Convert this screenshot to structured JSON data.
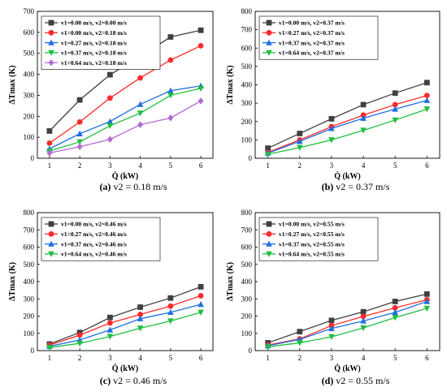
{
  "figure": {
    "panels": [
      {
        "id": "a",
        "caption_letter": "(a)",
        "caption_text": "v2 = 0.18 m/s",
        "chart_data": {
          "type": "line",
          "x": [
            1,
            2,
            3,
            4,
            5,
            6
          ],
          "xlabel": "Q̇ (kW)",
          "ylabel": "ΔTmax (K)",
          "ylim": [
            0,
            700
          ],
          "yticks": [
            0,
            100,
            200,
            300,
            400,
            500,
            600,
            700
          ],
          "legend_position": "top-left",
          "series": [
            {
              "name": "v1=0.00 m/s, v2=0.00 m/s",
              "color": "#404040",
              "marker": "square",
              "values": [
                130,
                278,
                398,
                485,
                578,
                610
              ]
            },
            {
              "name": "v1=0.00 m/s, v2=0.18 m/s",
              "color": "#ff2a2a",
              "marker": "circle",
              "values": [
                72,
                173,
                287,
                383,
                468,
                536
              ]
            },
            {
              "name": "v1=0.27 m/s, v2=0.18 m/s",
              "color": "#1f6fe0",
              "marker": "triangle-up",
              "values": [
                45,
                117,
                175,
                257,
                322,
                345
              ]
            },
            {
              "name": "v1=0.37 m/s, v2=0.18 m/s",
              "color": "#1fbf3f",
              "marker": "triangle-down",
              "values": [
                35,
                78,
                155,
                215,
                300,
                333
              ]
            },
            {
              "name": "v1=0.64 m/s, v2=0.18 m/s",
              "color": "#b36ad6",
              "marker": "diamond",
              "values": [
                25,
                55,
                90,
                160,
                192,
                273
              ]
            }
          ]
        }
      },
      {
        "id": "b",
        "caption_letter": "(b)",
        "caption_text": "v2 = 0.37 m/s",
        "chart_data": {
          "type": "line",
          "x": [
            1,
            2,
            3,
            4,
            5,
            6
          ],
          "xlabel": "Q̇ (kW)",
          "ylabel": "ΔTmax (K)",
          "ylim": [
            0,
            800
          ],
          "yticks": [
            0,
            100,
            200,
            300,
            400,
            500,
            600,
            700,
            800
          ],
          "legend_position": "top-left",
          "series": [
            {
              "name": "v1=0.00 m/s, v2=0.37 m/s",
              "color": "#404040",
              "marker": "square",
              "values": [
                55,
                135,
                215,
                292,
                355,
                412
              ]
            },
            {
              "name": "v1=0.27 m/s, v2=0.37 m/s",
              "color": "#ff2a2a",
              "marker": "circle",
              "values": [
                32,
                100,
                172,
                235,
                292,
                342
              ]
            },
            {
              "name": "v1=0.37 m/s, v2=0.37 m/s",
              "color": "#1f6fe0",
              "marker": "triangle-up",
              "values": [
                28,
                92,
                162,
                218,
                268,
                315
              ]
            },
            {
              "name": "v1=0.64 m/s, v2=0.37 m/s",
              "color": "#1fbf3f",
              "marker": "triangle-down",
              "values": [
                22,
                58,
                100,
                152,
                208,
                268
              ]
            }
          ]
        }
      },
      {
        "id": "c",
        "caption_letter": "(c)",
        "caption_text": "v2 = 0.46 m/s",
        "chart_data": {
          "type": "line",
          "x": [
            1,
            2,
            3,
            4,
            5,
            6
          ],
          "xlabel": "Q̇ (kW)",
          "ylabel": "ΔTmax (K)",
          "ylim": [
            0,
            800
          ],
          "yticks": [
            0,
            100,
            200,
            300,
            400,
            500,
            600,
            700,
            800
          ],
          "legend_position": "top-left",
          "series": [
            {
              "name": "v1=0.00 m/s, v2=0.46 m/s",
              "color": "#404040",
              "marker": "square",
              "values": [
                38,
                105,
                192,
                252,
                305,
                370
              ]
            },
            {
              "name": "v1=0.27 m/s, v2=0.46 m/s",
              "color": "#ff2a2a",
              "marker": "circle",
              "values": [
                32,
                90,
                160,
                210,
                258,
                318
              ]
            },
            {
              "name": "v1=0.37 m/s, v2=0.46 m/s",
              "color": "#1f6fe0",
              "marker": "triangle-up",
              "values": [
                25,
                62,
                120,
                185,
                222,
                268
              ]
            },
            {
              "name": "v1=0.64 m/s, v2=0.46 m/s",
              "color": "#1fbf3f",
              "marker": "triangle-down",
              "values": [
                18,
                42,
                82,
                130,
                172,
                222
              ]
            }
          ]
        }
      },
      {
        "id": "d",
        "caption_letter": "(d)",
        "caption_text": "v2 = 0.55 m/s",
        "chart_data": {
          "type": "line",
          "x": [
            1,
            2,
            3,
            4,
            5,
            6
          ],
          "xlabel": "Q̇ (kW)",
          "ylabel": "ΔTmax (K)",
          "ylim": [
            0,
            800
          ],
          "yticks": [
            0,
            100,
            200,
            300,
            400,
            500,
            600,
            700,
            800
          ],
          "legend_position": "top-left",
          "series": [
            {
              "name": "v1=0.00 m/s, v2=0.55 m/s",
              "color": "#404040",
              "marker": "square",
              "values": [
                45,
                110,
                175,
                225,
                285,
                328
              ]
            },
            {
              "name": "v1=0.27 m/s, v2=0.55 m/s",
              "color": "#ff2a2a",
              "marker": "circle",
              "values": [
                32,
                68,
                145,
                198,
                248,
                295
              ]
            },
            {
              "name": "v1=0.37 m/s, v2=0.55 m/s",
              "color": "#1f6fe0",
              "marker": "triangle-up",
              "values": [
                28,
                65,
                128,
                172,
                222,
                285
              ]
            },
            {
              "name": "v1=0.64 m/s, v2=0.55 m/s",
              "color": "#1fbf3f",
              "marker": "triangle-down",
              "values": [
                22,
                45,
                80,
                132,
                192,
                245
              ]
            }
          ]
        }
      }
    ]
  }
}
